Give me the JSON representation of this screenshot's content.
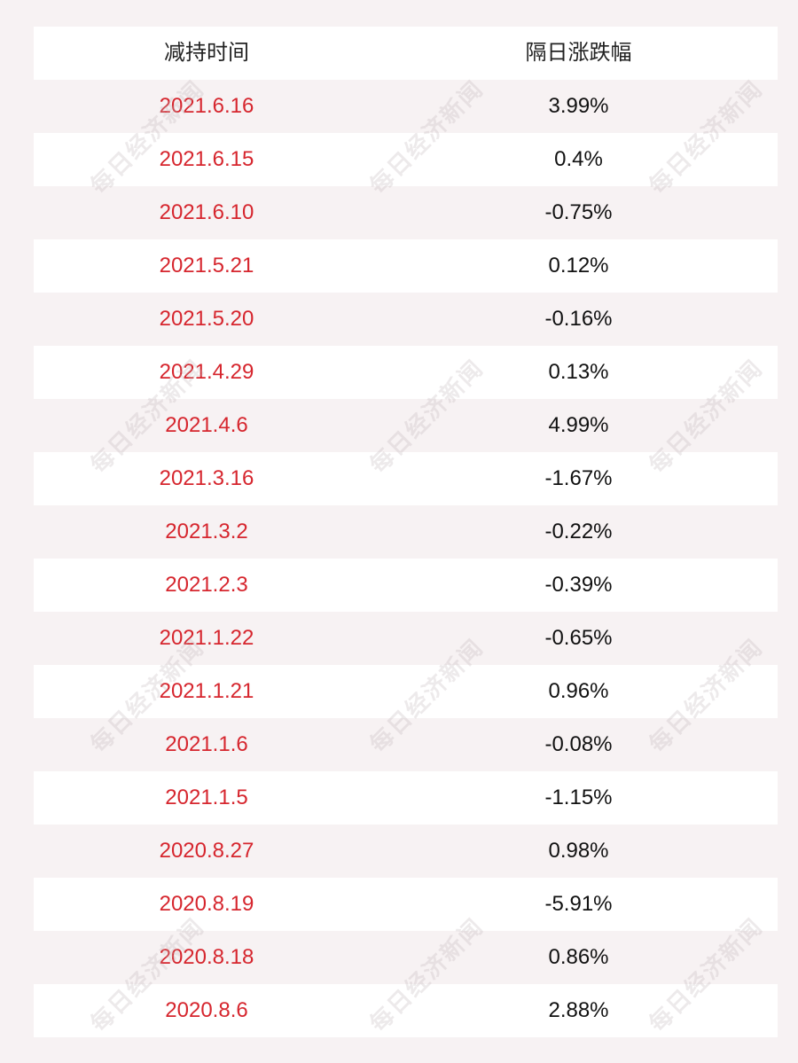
{
  "table": {
    "headers": [
      "减持时间",
      "隔日涨跌幅"
    ],
    "rows": [
      [
        "2021.6.16",
        "3.99%"
      ],
      [
        "2021.6.15",
        "0.4%"
      ],
      [
        "2021.6.10",
        "-0.75%"
      ],
      [
        "2021.5.21",
        "0.12%"
      ],
      [
        "2021.5.20",
        "-0.16%"
      ],
      [
        "2021.4.29",
        "0.13%"
      ],
      [
        "2021.4.6",
        "4.99%"
      ],
      [
        "2021.3.16",
        "-1.67%"
      ],
      [
        "2021.3.2",
        "-0.22%"
      ],
      [
        "2021.2.3",
        "-0.39%"
      ],
      [
        "2021.1.22",
        "-0.65%"
      ],
      [
        "2021.1.21",
        "0.96%"
      ],
      [
        "2021.1.6",
        "-0.08%"
      ],
      [
        "2021.1.5",
        "-1.15%"
      ],
      [
        "2020.8.27",
        "0.98%"
      ],
      [
        "2020.8.19",
        "-5.91%"
      ],
      [
        "2020.8.18",
        "0.86%"
      ],
      [
        "2020.8.6",
        "2.88%"
      ]
    ]
  },
  "watermark": {
    "text": "每日经济新闻"
  },
  "colors": {
    "date": "#d6262e",
    "value": "#111111",
    "row_white": "#ffffff",
    "row_alt": "#f7f2f3"
  }
}
